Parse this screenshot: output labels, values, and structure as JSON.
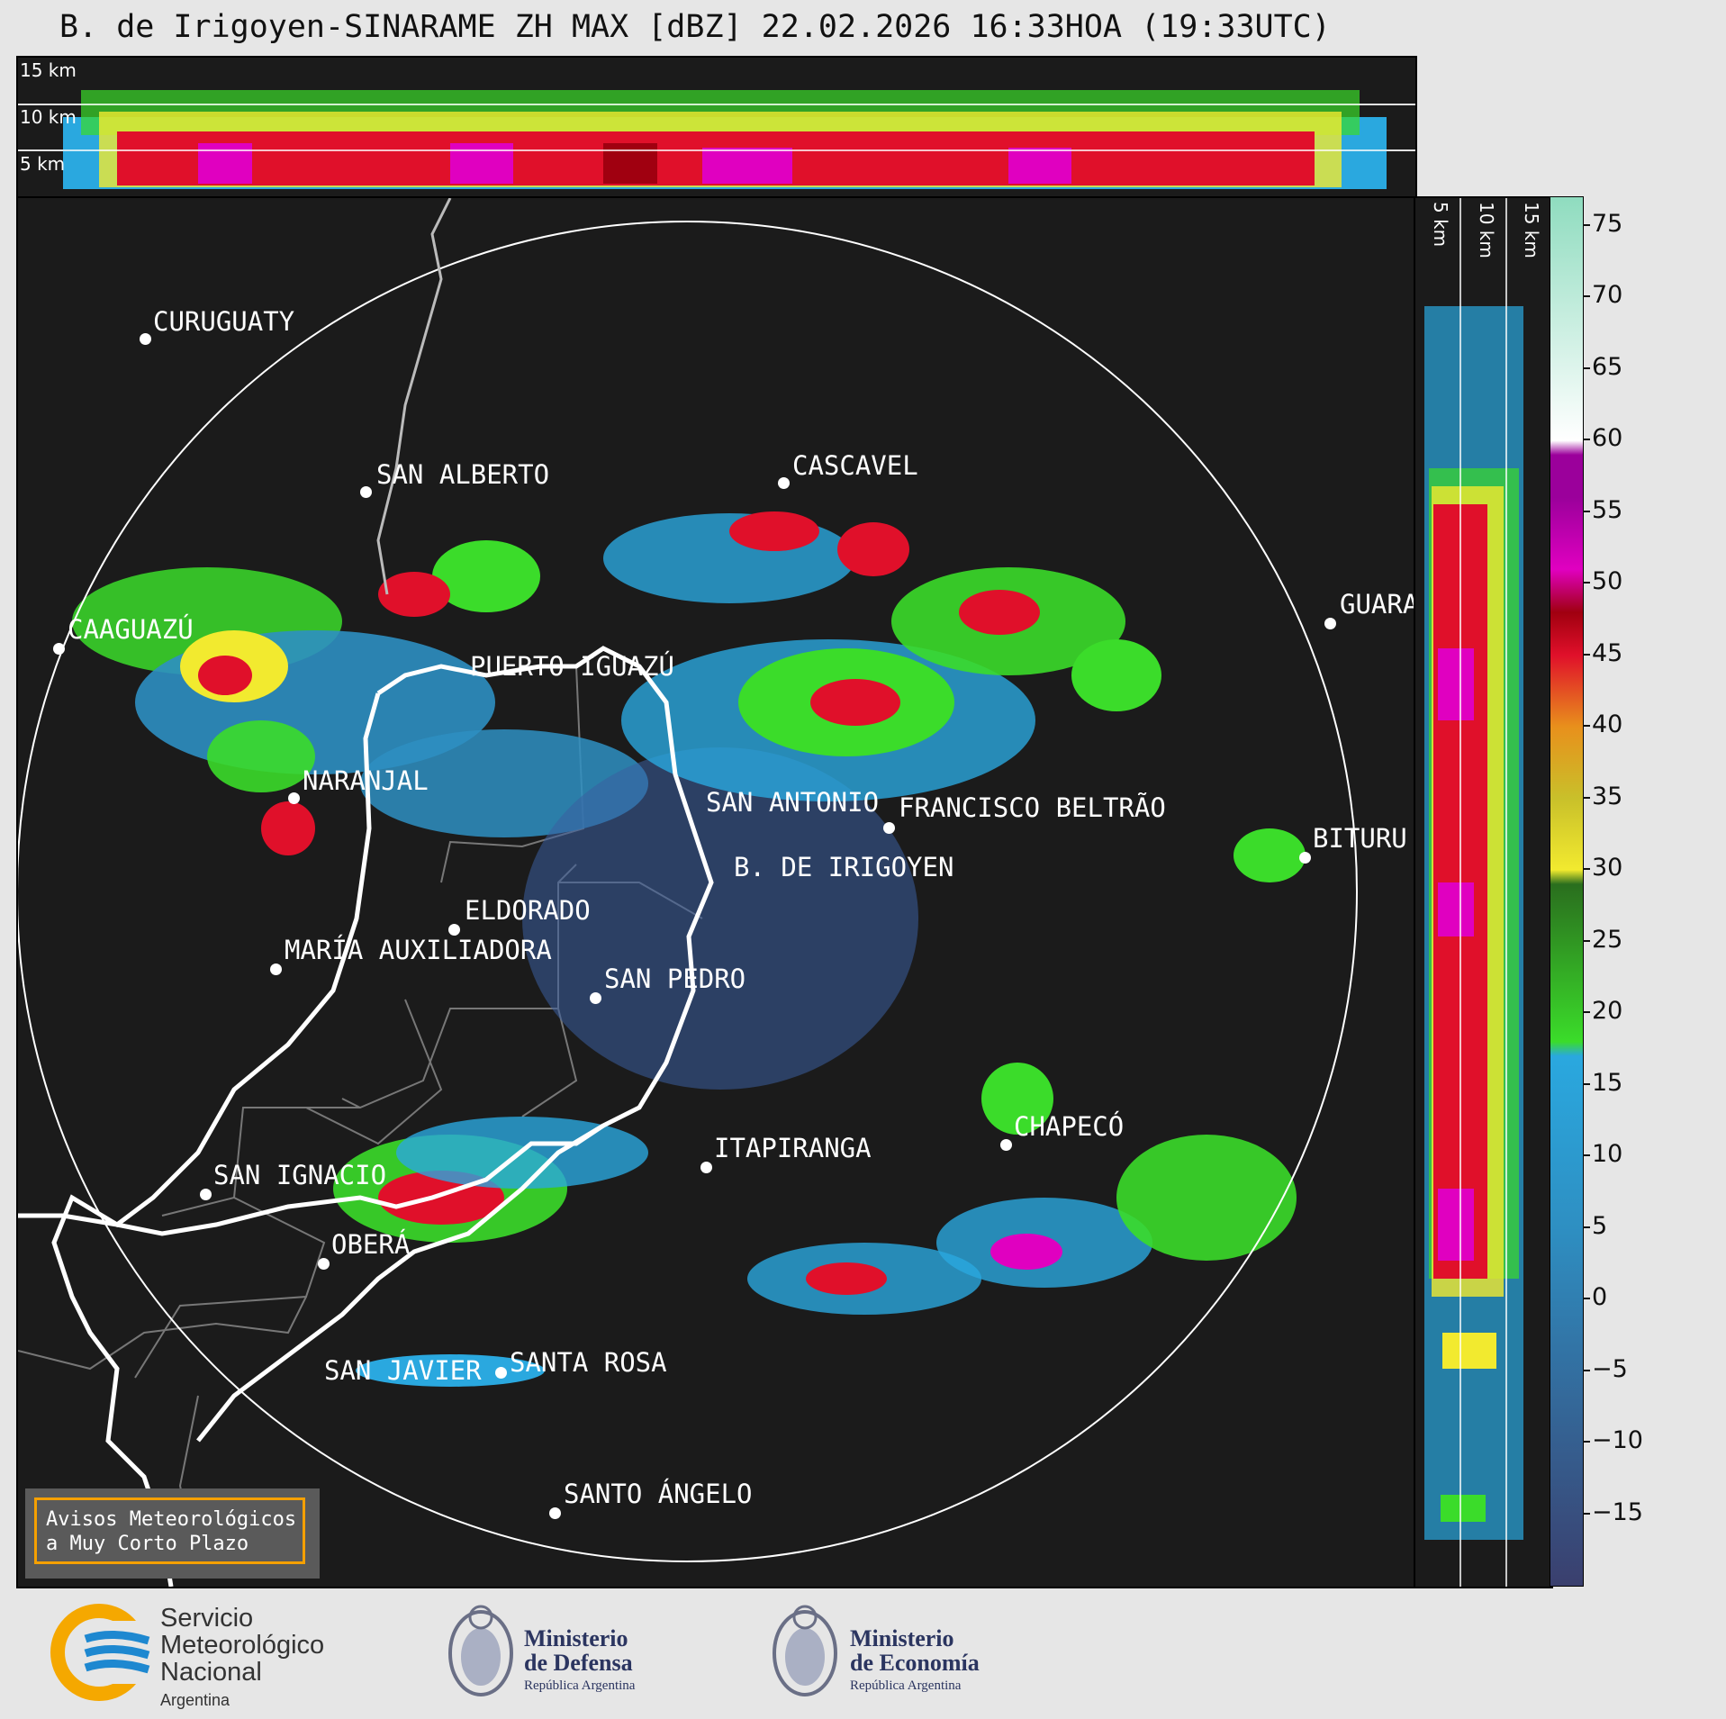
{
  "header": {
    "title": "B. de Irigoyen-SINARAME ZH MAX [dBZ] 22.02.2026 16:33HOA (19:33UTC)"
  },
  "top_strip": {
    "height_labels": [
      "15 km",
      "10 km",
      "5 km"
    ]
  },
  "side_strip": {
    "height_labels": [
      "5 km",
      "10 km",
      "15 km"
    ]
  },
  "colorbar": {
    "unit": "dBZ",
    "ticks": [
      "75",
      "70",
      "65",
      "60",
      "55",
      "50",
      "45",
      "40",
      "35",
      "30",
      "25",
      "20",
      "15",
      "10",
      "5",
      "0",
      "−5",
      "−10",
      "−15"
    ],
    "range": [
      -20,
      77
    ],
    "colors": {
      "low": "#3a3f6e",
      "blue": "#2e8fc2",
      "cyan": "#2aa8df",
      "green": "#3bdc2a",
      "dkgreen": "#2a6e1e",
      "yellow": "#f2ea2f",
      "olive": "#c9c02a",
      "orange": "#e8901c",
      "red": "#e0102a",
      "dkred": "#a00010",
      "magenta": "#e000c0",
      "purple": "#9b009b",
      "white": "#ffffff",
      "mint": "#8fdcbf"
    }
  },
  "cities": [
    {
      "name": "CURUGUATY"
    },
    {
      "name": "SAN ALBERTO"
    },
    {
      "name": "CASCAVEL"
    },
    {
      "name": "CAAGUAZÚ"
    },
    {
      "name": "GUARA"
    },
    {
      "name": "PUERTO IGUAZÚ"
    },
    {
      "name": "NARANJAL"
    },
    {
      "name": "SAN ANTONIO"
    },
    {
      "name": "FRANCISCO BELTRÃO"
    },
    {
      "name": "BITURU"
    },
    {
      "name": "B. DE IRIGOYEN"
    },
    {
      "name": "ELDORADO"
    },
    {
      "name": "MARÍA AUXILIADORA"
    },
    {
      "name": "SAN PEDRO"
    },
    {
      "name": "CHAPECÓ"
    },
    {
      "name": "ITAPIRANGA"
    },
    {
      "name": "SAN IGNACIO"
    },
    {
      "name": "OBERÁ"
    },
    {
      "name": "SAN JAVIER"
    },
    {
      "name": "SANTA ROSA"
    },
    {
      "name": "SANTO ÁNGELO"
    }
  ],
  "avisos": {
    "line1": "Avisos Meteorológicos",
    "line2": "a Muy Corto Plazo"
  },
  "footer": {
    "smn": {
      "line1": "Servicio",
      "line2": "Meteorológico",
      "line3": "Nacional",
      "line4": "Argentina",
      "colors": {
        "blue": "#1e88d0",
        "orange": "#f5a800"
      }
    },
    "defensa": {
      "line1": "Ministerio",
      "line2": "de Defensa",
      "sub": "República Argentina"
    },
    "economia": {
      "line1": "Ministerio",
      "line2": "de Economía",
      "sub": "República Argentina"
    }
  }
}
